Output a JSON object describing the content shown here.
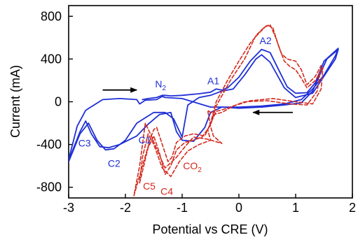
{
  "chart_data": {
    "type": "line",
    "title": "",
    "xlabel": "Potential vs CRE (V)",
    "ylabel": "Current (mA)",
    "xlim": [
      -3,
      2
    ],
    "ylim": [
      -900,
      900
    ],
    "x_ticks": [
      -3,
      -2,
      -1,
      0,
      1,
      2
    ],
    "x_tick_labels": [
      "-3",
      "-2",
      "-1",
      "0",
      "1",
      "2"
    ],
    "y_ticks": [
      -800,
      -400,
      0,
      400,
      800
    ],
    "y_tick_labels": [
      "-800",
      "-400",
      "0",
      "400",
      "800"
    ],
    "grid": false,
    "legend": "none",
    "colors": {
      "blue": "#1f2fd6",
      "red": "#d42a1e",
      "axis": "#000000"
    },
    "series": [
      {
        "color": "#1f2fd6",
        "style": "solid",
        "points": [
          [
            -1.7,
            20
          ],
          [
            -1.6,
            30
          ],
          [
            -1.45,
            40
          ],
          [
            -1.35,
            60
          ],
          [
            -1.3,
            60
          ],
          [
            -1.2,
            55
          ],
          [
            -1.0,
            60
          ],
          [
            -0.7,
            75
          ],
          [
            -0.5,
            90
          ],
          [
            -0.4,
            120
          ],
          [
            -0.3,
            110
          ],
          [
            -0.2,
            130
          ],
          [
            0.0,
            230
          ],
          [
            0.2,
            380
          ],
          [
            0.4,
            490
          ],
          [
            0.55,
            460
          ],
          [
            0.7,
            300
          ],
          [
            0.85,
            140
          ],
          [
            1.0,
            80
          ],
          [
            1.2,
            85
          ],
          [
            1.35,
            180
          ],
          [
            1.5,
            380
          ],
          [
            1.75,
            500
          ],
          [
            1.7,
            430
          ],
          [
            1.5,
            250
          ],
          [
            1.3,
            120
          ],
          [
            1.1,
            20
          ],
          [
            0.8,
            -20
          ],
          [
            0.4,
            -40
          ],
          [
            0.0,
            -50
          ],
          [
            -0.3,
            -50
          ],
          [
            -0.5,
            -100
          ],
          [
            -0.6,
            -240
          ],
          [
            -0.8,
            -370
          ],
          [
            -1.0,
            -360
          ],
          [
            -1.1,
            -280
          ],
          [
            -1.2,
            -100
          ],
          [
            -1.4,
            -120
          ],
          [
            -1.6,
            -210
          ],
          [
            -1.8,
            -320
          ],
          [
            -2.1,
            -400
          ],
          [
            -2.3,
            -430
          ],
          [
            -2.45,
            -420
          ],
          [
            -2.6,
            -300
          ],
          [
            -2.7,
            -180
          ],
          [
            -2.8,
            -280
          ],
          [
            -3.0,
            -550
          ]
        ]
      },
      {
        "color": "#1f2fd6",
        "style": "solid",
        "points": [
          [
            -3.0,
            -540
          ],
          [
            -2.85,
            -230
          ],
          [
            -2.7,
            -80
          ],
          [
            -2.4,
            20
          ],
          [
            -2.1,
            30
          ],
          [
            -1.8,
            20
          ],
          [
            -1.75,
            -20
          ],
          [
            -1.65,
            15
          ],
          [
            -1.45,
            20
          ],
          [
            -1.35,
            50
          ],
          [
            -1.3,
            40
          ],
          [
            -1.0,
            30
          ],
          [
            -0.5,
            -50
          ],
          [
            -0.3,
            -50
          ],
          [
            0.0,
            -60
          ],
          [
            0.4,
            -50
          ],
          [
            0.8,
            -30
          ],
          [
            1.1,
            -10
          ],
          [
            1.3,
            100
          ],
          [
            1.45,
            280
          ],
          [
            1.55,
            400
          ],
          [
            1.75,
            490
          ],
          [
            1.7,
            400
          ],
          [
            1.3,
            80
          ],
          [
            1.0,
            40
          ],
          [
            0.8,
            130
          ],
          [
            0.55,
            370
          ],
          [
            0.4,
            440
          ],
          [
            0.3,
            400
          ],
          [
            0.1,
            250
          ],
          [
            -0.1,
            120
          ],
          [
            -0.3,
            100
          ],
          [
            -0.5,
            60
          ],
          [
            -0.7,
            40
          ],
          [
            -0.9,
            -30
          ],
          [
            -1.0,
            -330
          ],
          [
            -1.15,
            -160
          ],
          [
            -1.3,
            -100
          ],
          [
            -1.5,
            -100
          ],
          [
            -1.8,
            -200
          ],
          [
            -2.0,
            -360
          ],
          [
            -2.2,
            -440
          ],
          [
            -2.35,
            -450
          ],
          [
            -2.5,
            -360
          ],
          [
            -2.65,
            -200
          ],
          [
            -2.8,
            -300
          ],
          [
            -3.0,
            -560
          ]
        ]
      },
      {
        "color": "#d42a1e",
        "style": "dashed",
        "points": [
          [
            -1.85,
            -880
          ],
          [
            -1.7,
            -600
          ],
          [
            -1.55,
            -330
          ],
          [
            -1.5,
            -260
          ],
          [
            -1.45,
            -240
          ],
          [
            -1.35,
            -400
          ],
          [
            -1.25,
            -560
          ],
          [
            -1.18,
            -520
          ],
          [
            -1.1,
            -380
          ],
          [
            -0.95,
            -320
          ],
          [
            -0.8,
            -300
          ],
          [
            -0.7,
            -310
          ],
          [
            -0.6,
            -320
          ],
          [
            -0.5,
            -200
          ],
          [
            -0.4,
            0
          ],
          [
            -0.2,
            200
          ],
          [
            0.0,
            380
          ],
          [
            0.2,
            550
          ],
          [
            0.35,
            640
          ],
          [
            0.5,
            720
          ],
          [
            0.6,
            690
          ],
          [
            0.7,
            520
          ],
          [
            0.8,
            380
          ],
          [
            0.9,
            330
          ],
          [
            1.0,
            300
          ],
          [
            1.1,
            220
          ],
          [
            1.2,
            130
          ],
          [
            1.35,
            200
          ],
          [
            1.48,
            320
          ],
          [
            1.45,
            120
          ],
          [
            1.3,
            -20
          ],
          [
            1.0,
            0
          ],
          [
            0.6,
            30
          ],
          [
            0.2,
            10
          ],
          [
            -0.1,
            -40
          ],
          [
            -0.3,
            -100
          ],
          [
            -0.45,
            -120
          ],
          [
            -0.55,
            -80
          ],
          [
            -0.5,
            -230
          ],
          [
            -0.45,
            -320
          ],
          [
            -0.3,
            -390
          ],
          [
            -0.55,
            -350
          ],
          [
            -0.8,
            -330
          ],
          [
            -0.95,
            -420
          ],
          [
            -1.1,
            -520
          ],
          [
            -1.3,
            -620
          ],
          [
            -1.45,
            -440
          ],
          [
            -1.55,
            -310
          ],
          [
            -1.65,
            -200
          ],
          [
            -1.75,
            -600
          ],
          [
            -1.85,
            -880
          ]
        ]
      },
      {
        "color": "#d42a1e",
        "style": "dashed",
        "points": [
          [
            -1.75,
            -760
          ],
          [
            -1.6,
            -430
          ],
          [
            -1.5,
            -320
          ],
          [
            -1.4,
            -480
          ],
          [
            -1.3,
            -680
          ],
          [
            -1.2,
            -600
          ],
          [
            -1.1,
            -450
          ],
          [
            -0.95,
            -380
          ],
          [
            -0.8,
            -360
          ],
          [
            -0.65,
            -330
          ],
          [
            -0.5,
            -220
          ],
          [
            -0.4,
            -40
          ],
          [
            -0.15,
            200
          ],
          [
            0.1,
            400
          ],
          [
            0.3,
            620
          ],
          [
            0.45,
            700
          ],
          [
            0.55,
            720
          ],
          [
            0.65,
            600
          ],
          [
            0.75,
            450
          ],
          [
            0.85,
            400
          ],
          [
            1.0,
            380
          ],
          [
            1.1,
            300
          ],
          [
            1.2,
            160
          ],
          [
            1.35,
            240
          ],
          [
            1.45,
            340
          ],
          [
            1.38,
            100
          ],
          [
            1.2,
            -30
          ],
          [
            0.9,
            -20
          ],
          [
            0.5,
            10
          ],
          [
            0.1,
            0
          ],
          [
            -0.2,
            -60
          ],
          [
            -0.4,
            -90
          ],
          [
            -0.55,
            -260
          ],
          [
            -0.5,
            -360
          ],
          [
            -0.7,
            -400
          ],
          [
            -0.9,
            -460
          ],
          [
            -1.05,
            -560
          ],
          [
            -1.2,
            -700
          ],
          [
            -1.35,
            -620
          ],
          [
            -1.5,
            -400
          ],
          [
            -1.6,
            -300
          ],
          [
            -1.7,
            -520
          ],
          [
            -1.75,
            -760
          ]
        ]
      }
    ],
    "annotations": [
      {
        "text": "A2",
        "x": 0.47,
        "y": 540,
        "color": "#1f2fd6"
      },
      {
        "text": "A1",
        "x": -0.45,
        "y": 165,
        "color": "#1f2fd6"
      },
      {
        "text": "N",
        "sub": "2",
        "x": -1.38,
        "y": 135,
        "color": "#1f2fd6"
      },
      {
        "text": "C1",
        "x": -1.66,
        "y": -390,
        "color": "#1f2fd6"
      },
      {
        "text": "C2",
        "x": -2.2,
        "y": -610,
        "color": "#1f2fd6"
      },
      {
        "text": "C3",
        "x": -2.72,
        "y": -420,
        "color": "#1f2fd6"
      },
      {
        "text": "CO",
        "sub": "2",
        "x": -0.82,
        "y": -630,
        "color": "#d42a1e"
      },
      {
        "text": "C5",
        "x": -1.58,
        "y": -820,
        "color": "#d42a1e"
      },
      {
        "text": "C4",
        "x": -1.27,
        "y": -870,
        "color": "#d42a1e"
      }
    ],
    "arrows": [
      {
        "from": [
          -2.4,
          110
        ],
        "to": [
          -1.8,
          110
        ],
        "direction": "right"
      },
      {
        "from": [
          0.95,
          -100
        ],
        "to": [
          0.25,
          -100
        ],
        "direction": "left"
      }
    ]
  }
}
